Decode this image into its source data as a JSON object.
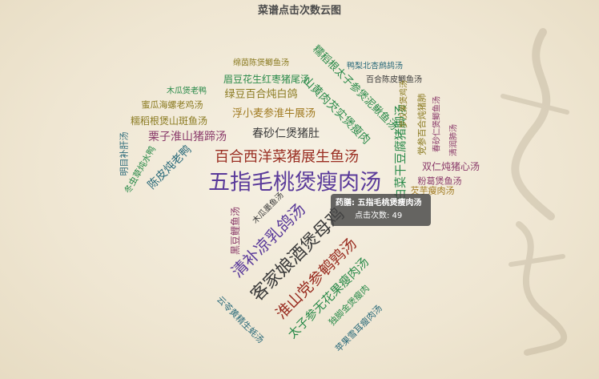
{
  "title": "菜谱点击次数云图",
  "tooltip": {
    "line1": "药膳: 五指毛桃煲瘦肉汤",
    "line2": "点击次数: 49"
  },
  "chart_data": {
    "type": "wordcloud",
    "title": "菜谱点击次数云图",
    "series_label": "药膳",
    "value_label": "点击次数",
    "words": [
      {
        "text": "五指毛桃煲瘦肉汤",
        "value": 49,
        "color": "#5a3a9a"
      },
      {
        "text": "客家娘酒煲母鸡",
        "value": 44,
        "color": "#3a3a3a"
      },
      {
        "text": "百合西洋菜猪展生鱼汤",
        "value": 40,
        "color": "#9a2e22"
      },
      {
        "text": "淮山党参鹌鹑汤",
        "value": 38,
        "color": "#9a2e22"
      },
      {
        "text": "清补凉乳鸽汤",
        "value": 36,
        "color": "#5a3a9a"
      },
      {
        "text": "太子参无花果瘦肉汤",
        "value": 32,
        "color": "#2a8a4a"
      },
      {
        "text": "山黄肉芡实煲瘦肉",
        "value": 30,
        "color": "#2a8a4a"
      },
      {
        "text": "糯稻根太子参煲泥鳅鱼汤",
        "value": 29,
        "color": "#2a8a4a"
      },
      {
        "text": "白菜干豆腐猪脚汤",
        "value": 29,
        "color": "#2a8a4a"
      },
      {
        "text": "陈皮炖老鸭",
        "value": 28,
        "color": "#2a6a7a"
      },
      {
        "text": "栗子淮山猪蹄汤",
        "value": 27,
        "color": "#8a3a6a"
      },
      {
        "text": "春砂仁煲猪肚",
        "value": 26,
        "color": "#3a3a3a"
      },
      {
        "text": "双仁炖猪心汤",
        "value": 25,
        "color": "#8a3a6a"
      },
      {
        "text": "浮小麦参淮牛展汤",
        "value": 25,
        "color": "#a07a20"
      },
      {
        "text": "绿豆百合炖白鸽",
        "value": 25,
        "color": "#8a7a20"
      },
      {
        "text": "眉豆花生红枣猪尾汤",
        "value": 24,
        "color": "#2a8a4a"
      },
      {
        "text": "糯稻根煲山斑鱼汤",
        "value": 23,
        "color": "#8a7a20"
      },
      {
        "text": "蜜瓜海螺老鸡汤",
        "value": 21,
        "color": "#8a7a20"
      },
      {
        "text": "黑豆鲤鱼汤",
        "value": 20,
        "color": "#8a3a6a"
      },
      {
        "text": "独脚金煲瘦肉",
        "value": 19,
        "color": "#2a8a4a"
      },
      {
        "text": "苹果雪耳瘦肉汤",
        "value": 19,
        "color": "#2a6a7a"
      },
      {
        "text": "云苓黄精生蚝汤",
        "value": 19,
        "color": "#2a6a7a"
      },
      {
        "text": "党参百合炖猪肺",
        "value": 19,
        "color": "#8a7a20"
      },
      {
        "text": "粉葛煲鱼汤",
        "value": 19,
        "color": "#8a3a6a"
      },
      {
        "text": "芡芋瘦肉汤",
        "value": 19,
        "color": "#a07a20"
      },
      {
        "text": "冬虫草炖水鸭",
        "value": 18,
        "color": "#2a8a4a"
      },
      {
        "text": "明目补肝汤",
        "value": 18,
        "color": "#2a6a7a"
      },
      {
        "text": "百合陈皮鲫鱼汤",
        "value": 18,
        "color": "#3a3a3a"
      },
      {
        "text": "鸭梨北杏鹧鸪汤",
        "value": 18,
        "color": "#2a6a7a"
      },
      {
        "text": "绵茵陈煲鲫鱼汤",
        "value": 18,
        "color": "#8a7a20"
      },
      {
        "text": "木瓜煲老鸭",
        "value": 17,
        "color": "#2a8a4a"
      },
      {
        "text": "木瓜墨鱼汤",
        "value": 17,
        "color": "#3a3a3a"
      },
      {
        "text": "春砂仁煲鲫鱼汤",
        "value": 17,
        "color": "#8a3a6a"
      },
      {
        "text": "清润肺汤",
        "value": 17,
        "color": "#8a3a6a"
      },
      {
        "text": "罗汉果煲鸡汤",
        "value": 17,
        "color": "#8a7a20"
      }
    ]
  }
}
